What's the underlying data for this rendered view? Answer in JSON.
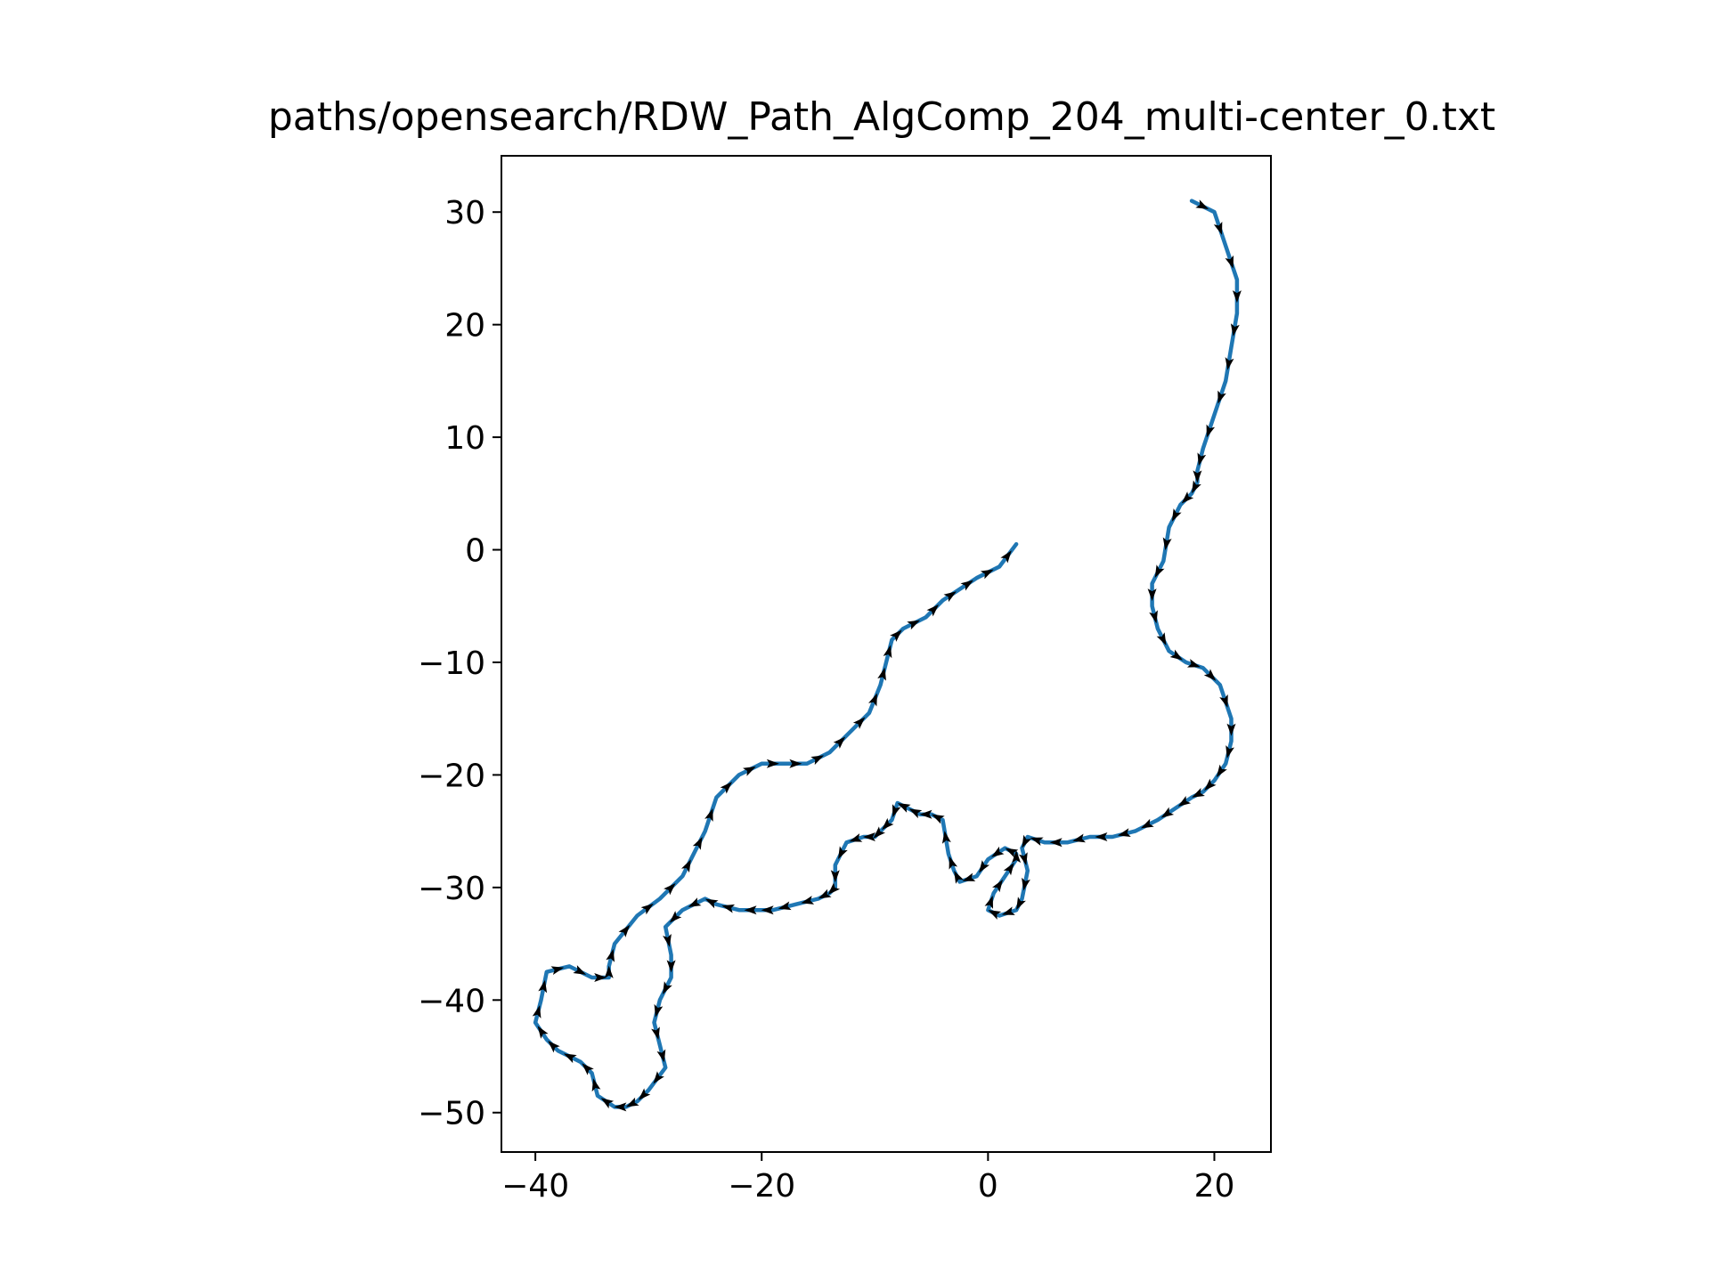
{
  "chart_data": {
    "type": "line",
    "title": "paths/opensearch/RDW_Path_AlgComp_204_multi-center_0.txt",
    "xlabel": "",
    "ylabel": "",
    "xlim": [
      -43,
      25
    ],
    "ylim": [
      -53.5,
      35
    ],
    "xticks": [
      -40,
      -20,
      0,
      20
    ],
    "yticks": [
      30,
      20,
      10,
      0,
      -10,
      -20,
      -30,
      -40,
      -50
    ],
    "xtick_labels": [
      "−40",
      "−20",
      "0",
      "20"
    ],
    "ytick_labels": [
      "30",
      "20",
      "10",
      "0",
      "−10",
      "−20",
      "−30",
      "−40",
      "−50"
    ],
    "grid": false,
    "line_color": "#1f77b4",
    "arrow_color": "#000000",
    "series": [
      {
        "x": [
          18,
          20,
          21,
          22,
          22,
          21.5,
          21,
          20,
          19,
          18.5,
          18.5,
          18,
          17,
          16,
          15.5,
          14.5,
          14.5,
          15,
          16,
          17.5,
          19,
          20.5,
          21.5,
          21.5,
          21,
          20,
          19,
          18,
          16.5,
          15,
          13,
          11,
          9,
          7,
          5,
          3.5,
          3,
          3.5,
          3,
          2.5,
          1,
          0,
          0.5,
          1.5,
          2.5,
          2.5,
          1.5,
          0,
          -1,
          -2.5,
          -3,
          -3.5,
          -4,
          -5,
          -6,
          -7,
          -8,
          -8.5,
          -9.5,
          -10,
          -11,
          -12.5,
          -13.5,
          -13.5,
          -14,
          -15,
          -17,
          -19,
          -20,
          -22,
          -24,
          -25,
          -27,
          -28.5,
          -28,
          -28,
          -29,
          -29.5,
          -29,
          -28.5,
          -30,
          -31,
          -32,
          -33,
          -34.5,
          -35,
          -36,
          -38,
          -39,
          -40,
          -39.5,
          -39,
          -37,
          -35,
          -33.5,
          -33.5,
          -33,
          -31,
          -29,
          -27,
          -26,
          -25,
          -24,
          -22,
          -20,
          -18,
          -16,
          -14,
          -12,
          -10.5,
          -9.5,
          -9,
          -8.5,
          -7.5,
          -5.5,
          -4,
          -2.5,
          -1,
          1,
          2.5,
          2.5
        ],
        "y": [
          31,
          30,
          27,
          24,
          21,
          18,
          15,
          12,
          9,
          7,
          6,
          5,
          4,
          2,
          -1,
          -3,
          -5,
          -7,
          -9,
          -10,
          -10.5,
          -12,
          -15,
          -17,
          -19,
          -20.5,
          -21.5,
          -22,
          -23,
          -24,
          -25,
          -25.5,
          -25.5,
          -26,
          -26,
          -25.5,
          -26.5,
          -28.5,
          -31,
          -32,
          -32.5,
          -32,
          -30.5,
          -29,
          -27.5,
          -27,
          -26.5,
          -27.5,
          -29,
          -29.5,
          -28.5,
          -27,
          -24,
          -23.5,
          -23.5,
          -23,
          -22.5,
          -24,
          -25,
          -25.5,
          -25.5,
          -26,
          -28,
          -30,
          -30.5,
          -31,
          -31.5,
          -32,
          -32,
          -32,
          -31.5,
          -31,
          -32,
          -33.5,
          -36,
          -38,
          -40,
          -42,
          -44,
          -46,
          -48,
          -49,
          -49.5,
          -49.5,
          -48.5,
          -46.5,
          -45.5,
          -44.5,
          -43.5,
          -42,
          -40,
          -37.5,
          -37,
          -38,
          -38,
          -37,
          -35,
          -32.5,
          -31,
          -29,
          -27,
          -25,
          -22,
          -20,
          -19,
          -19,
          -19,
          -18,
          -16,
          -14.5,
          -12,
          -10,
          -8,
          -7,
          -6,
          -4.5,
          -3.5,
          -2.5,
          -1.5,
          0.5,
          0.5
        ]
      }
    ]
  }
}
